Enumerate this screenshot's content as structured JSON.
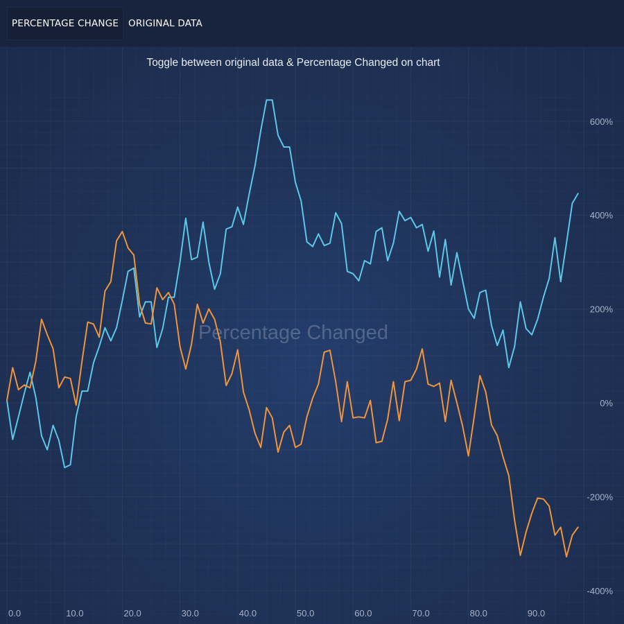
{
  "toolbar": {
    "tabs": [
      {
        "label": "PERCENTAGE CHANGE",
        "active": true
      },
      {
        "label": "ORIGINAL DATA",
        "active": false
      }
    ]
  },
  "colors": {
    "series_blue": "#5bc8e8",
    "series_orange": "#f0953a",
    "background": "#1c2a4a"
  },
  "chart_data": {
    "type": "line",
    "title": "Toggle between original data & Percentage Changed on chart",
    "watermark": "Percentage Changed",
    "xlabel": "",
    "ylabel": "",
    "xlim": [
      0,
      100
    ],
    "ylim": [
      -400,
      600
    ],
    "x_ticks": [
      "0.0",
      "10.0",
      "20.0",
      "30.0",
      "40.0",
      "50.0",
      "60.0",
      "70.0",
      "80.0",
      "90.0"
    ],
    "y_ticks": [
      "600%",
      "400%",
      "200%",
      "0%",
      "-200%",
      "-400%"
    ],
    "y_axis_position": "right",
    "grid": true,
    "series": [
      {
        "color": "#5bc8e8",
        "x": [
          0,
          1,
          2,
          3,
          4,
          5,
          6,
          7,
          8,
          9,
          10,
          11,
          12,
          13,
          14,
          15,
          16,
          17,
          18,
          19,
          20,
          21,
          22,
          23,
          24,
          25,
          26,
          27,
          28,
          29,
          30,
          31,
          32,
          33,
          34,
          35,
          36,
          37,
          38,
          39,
          40,
          41,
          42,
          43,
          44,
          45,
          46,
          47,
          48,
          49,
          50,
          51,
          52,
          53,
          54,
          55,
          56,
          57,
          58,
          59,
          60,
          61,
          62,
          63,
          64,
          65,
          66,
          67,
          68,
          69,
          70,
          71,
          72,
          73,
          74,
          75,
          76,
          77,
          78,
          79,
          80,
          81,
          82,
          83,
          84,
          85,
          86,
          87,
          88,
          89,
          90,
          91,
          92,
          93,
          94,
          95,
          96,
          97,
          98,
          99
        ],
        "values": [
          5,
          -78,
          -30,
          20,
          65,
          12,
          -70,
          -100,
          -48,
          -80,
          -138,
          -132,
          -30,
          25,
          25,
          85,
          120,
          160,
          132,
          160,
          218,
          280,
          287,
          183,
          215,
          215,
          118,
          158,
          225,
          225,
          300,
          393,
          305,
          310,
          385,
          300,
          242,
          275,
          370,
          375,
          417,
          380,
          445,
          505,
          580,
          645,
          645,
          570,
          545,
          545,
          470,
          430,
          343,
          333,
          360,
          335,
          340,
          405,
          382,
          280,
          275,
          260,
          303,
          296,
          365,
          373,
          303,
          340,
          408,
          388,
          395,
          373,
          380,
          323,
          366,
          268,
          348,
          251,
          320,
          260,
          200,
          180,
          235,
          240,
          165,
          122,
          155,
          75,
          120,
          215,
          158,
          145,
          178,
          225,
          265,
          352,
          258,
          340,
          425,
          446
        ]
      },
      {
        "color": "#f0953a",
        "x": [
          0,
          1,
          2,
          3,
          4,
          5,
          6,
          7,
          8,
          9,
          10,
          11,
          12,
          13,
          14,
          15,
          16,
          17,
          18,
          19,
          20,
          21,
          22,
          23,
          24,
          25,
          26,
          27,
          28,
          29,
          30,
          31,
          32,
          33,
          34,
          35,
          36,
          37,
          38,
          39,
          40,
          41,
          42,
          43,
          44,
          45,
          46,
          47,
          48,
          49,
          50,
          51,
          52,
          53,
          54,
          55,
          56,
          57,
          58,
          59,
          60,
          61,
          62,
          63,
          64,
          65,
          66,
          67,
          68,
          69,
          70,
          71,
          72,
          73,
          74,
          75,
          76,
          77,
          78,
          79,
          80,
          81,
          82,
          83,
          84,
          85,
          86,
          87,
          88,
          89,
          90,
          91,
          92,
          93,
          94,
          95,
          96,
          97,
          98,
          99
        ],
        "values": [
          5,
          75,
          28,
          38,
          32,
          88,
          178,
          145,
          115,
          32,
          55,
          52,
          -5,
          88,
          172,
          168,
          140,
          238,
          258,
          345,
          365,
          330,
          315,
          210,
          170,
          168,
          245,
          220,
          235,
          210,
          120,
          72,
          125,
          210,
          170,
          200,
          178,
          130,
          37,
          62,
          113,
          23,
          -15,
          -65,
          -95,
          -10,
          -32,
          -105,
          -62,
          -48,
          -95,
          -88,
          -30,
          10,
          40,
          108,
          112,
          45,
          -40,
          45,
          -32,
          -30,
          -32,
          5,
          -85,
          -82,
          -35,
          45,
          -38,
          45,
          48,
          72,
          115,
          40,
          35,
          42,
          -40,
          48,
          0,
          -50,
          -113,
          -30,
          58,
          23,
          -47,
          -70,
          -115,
          -155,
          -250,
          -325,
          -275,
          -235,
          -203,
          -205,
          -220,
          -282,
          -265,
          -328,
          -282,
          -265
        ]
      }
    ]
  }
}
